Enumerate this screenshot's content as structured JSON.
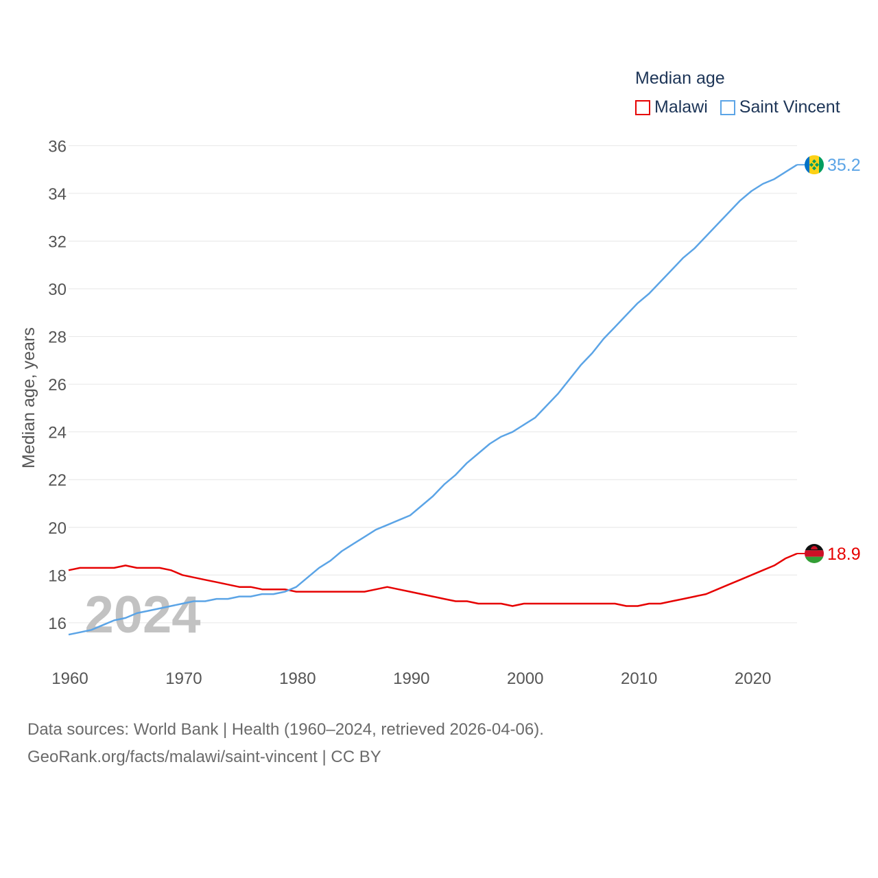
{
  "legend": {
    "title": "Median age",
    "items": [
      {
        "label": "Malawi",
        "color": "#e60000"
      },
      {
        "label": "Saint Vincent",
        "color": "#5ba4e6"
      }
    ]
  },
  "year_watermark": "2024",
  "source": {
    "line1": "Data sources: World Bank | Health (1960–2024, retrieved 2026-04-06).",
    "line2": "GeoRank.org/facts/malawi/saint-vincent | CC BY"
  },
  "chart_data": {
    "type": "line",
    "title": "Median age",
    "ylabel": "Median age, years",
    "xlabel": "",
    "xlim": [
      1960,
      2024
    ],
    "ylim": [
      14.5,
      36.5
    ],
    "yticks": [
      16,
      18,
      20,
      22,
      24,
      26,
      28,
      30,
      32,
      34,
      36
    ],
    "xticks": [
      1960,
      1970,
      1980,
      1990,
      2000,
      2010,
      2020
    ],
    "x": [
      1960,
      1961,
      1962,
      1963,
      1964,
      1965,
      1966,
      1967,
      1968,
      1969,
      1970,
      1971,
      1972,
      1973,
      1974,
      1975,
      1976,
      1977,
      1978,
      1979,
      1980,
      1981,
      1982,
      1983,
      1984,
      1985,
      1986,
      1987,
      1988,
      1989,
      1990,
      1991,
      1992,
      1993,
      1994,
      1995,
      1996,
      1997,
      1998,
      1999,
      2000,
      2001,
      2002,
      2003,
      2004,
      2005,
      2006,
      2007,
      2008,
      2009,
      2010,
      2011,
      2012,
      2013,
      2014,
      2015,
      2016,
      2017,
      2018,
      2019,
      2020,
      2021,
      2022,
      2023,
      2024
    ],
    "series": [
      {
        "name": "Malawi",
        "color": "#e60000",
        "end_label": "18.9",
        "flag": "malawi-flag",
        "values": [
          18.2,
          18.3,
          18.3,
          18.3,
          18.3,
          18.4,
          18.3,
          18.3,
          18.3,
          18.2,
          18.0,
          17.9,
          17.8,
          17.7,
          17.6,
          17.5,
          17.5,
          17.4,
          17.4,
          17.4,
          17.3,
          17.3,
          17.3,
          17.3,
          17.3,
          17.3,
          17.3,
          17.4,
          17.5,
          17.4,
          17.3,
          17.2,
          17.1,
          17.0,
          16.9,
          16.9,
          16.8,
          16.8,
          16.8,
          16.7,
          16.8,
          16.8,
          16.8,
          16.8,
          16.8,
          16.8,
          16.8,
          16.8,
          16.8,
          16.7,
          16.7,
          16.8,
          16.8,
          16.9,
          17.0,
          17.1,
          17.2,
          17.4,
          17.6,
          17.8,
          18.0,
          18.2,
          18.4,
          18.7,
          18.9
        ]
      },
      {
        "name": "Saint Vincent",
        "color": "#5ba4e6",
        "end_label": "35.2",
        "flag": "saint-vincent-flag",
        "values": [
          15.5,
          15.6,
          15.7,
          15.9,
          16.1,
          16.2,
          16.4,
          16.5,
          16.6,
          16.7,
          16.8,
          16.9,
          16.9,
          17.0,
          17.0,
          17.1,
          17.1,
          17.2,
          17.2,
          17.3,
          17.5,
          17.9,
          18.3,
          18.6,
          19.0,
          19.3,
          19.6,
          19.9,
          20.1,
          20.3,
          20.5,
          20.9,
          21.3,
          21.8,
          22.2,
          22.7,
          23.1,
          23.5,
          23.8,
          24.0,
          24.3,
          24.6,
          25.1,
          25.6,
          26.2,
          26.8,
          27.3,
          27.9,
          28.4,
          28.9,
          29.4,
          29.8,
          30.3,
          30.8,
          31.3,
          31.7,
          32.2,
          32.7,
          33.2,
          33.7,
          34.1,
          34.4,
          34.6,
          34.9,
          35.2
        ]
      }
    ]
  }
}
